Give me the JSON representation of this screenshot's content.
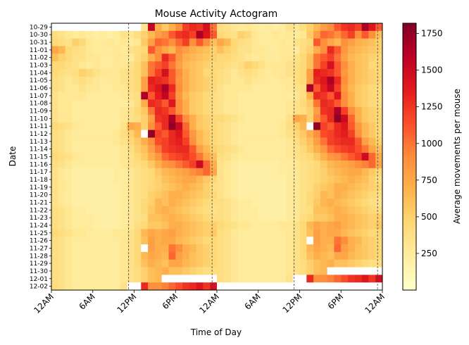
{
  "chart_data": {
    "type": "heatmap",
    "title": "Mouse Activity Actogram",
    "xlabel": "Time of Day",
    "ylabel": "Date",
    "colorbar_label": "Average movements per mouse",
    "colormap": "YlOrRd",
    "vmin": 0,
    "vmax": 1820,
    "colorbar_ticks": [
      250,
      500,
      750,
      1000,
      1250,
      1500,
      1750
    ],
    "colorbar_tick_labels": [
      "250",
      "500",
      "750",
      "1000",
      "1250",
      "1500",
      "1750"
    ],
    "x_range_hours": [
      0,
      48
    ],
    "x_tick_hours": [
      0,
      6,
      12,
      18,
      24,
      30,
      36,
      42,
      48
    ],
    "x_tick_labels": [
      "12AM",
      "6AM",
      "12PM",
      "6PM",
      "12AM",
      "6AM",
      "12PM",
      "6PM",
      "12AM"
    ],
    "bins_per_day": 24,
    "y_categories": [
      "10-29",
      "10-30",
      "10-31",
      "11-01",
      "11-02",
      "11-03",
      "11-04",
      "11-05",
      "11-06",
      "11-07",
      "11-08",
      "11-09",
      "11-10",
      "11-11",
      "11-12",
      "11-13",
      "11-14",
      "11-15",
      "11-16",
      "11-17",
      "11-18",
      "11-19",
      "11-20",
      "11-21",
      "11-22",
      "11-23",
      "11-24",
      "11-25",
      "11-26",
      "11-27",
      "11-28",
      "11-29",
      "11-30",
      "12-01",
      "12-02"
    ],
    "light_transition_hours": [
      11.2,
      23.3,
      35.2,
      47.3
    ],
    "activity_by_day": [
      [
        null,
        null,
        null,
        null,
        null,
        null,
        null,
        null,
        null,
        null,
        null,
        null,
        null,
        320,
        1550,
        700,
        550,
        700,
        900,
        1200,
        1300,
        1250,
        1450,
        1000
      ],
      [
        400,
        350,
        300,
        250,
        300,
        250,
        200,
        250,
        200,
        250,
        350,
        300,
        400,
        500,
        650,
        800,
        900,
        1100,
        1250,
        1300,
        1200,
        1650,
        1400,
        1100
      ],
      [
        450,
        400,
        350,
        500,
        450,
        300,
        250,
        250,
        300,
        250,
        300,
        250,
        300,
        550,
        800,
        1050,
        1000,
        900,
        1050,
        1200,
        900,
        1100,
        900,
        600
      ],
      [
        750,
        650,
        450,
        400,
        350,
        300,
        250,
        250,
        250,
        300,
        250,
        350,
        400,
        450,
        1100,
        900,
        750,
        650,
        900,
        800,
        700,
        650,
        600,
        500
      ],
      [
        600,
        500,
        450,
        350,
        350,
        300,
        300,
        250,
        250,
        300,
        300,
        250,
        400,
        500,
        700,
        900,
        1300,
        1100,
        850,
        700,
        650,
        600,
        550,
        500
      ],
      [
        450,
        450,
        400,
        350,
        300,
        250,
        300,
        250,
        250,
        300,
        300,
        350,
        450,
        600,
        1000,
        1100,
        1200,
        1000,
        800,
        650,
        600,
        550,
        500,
        450
      ],
      [
        450,
        400,
        350,
        400,
        500,
        450,
        350,
        300,
        300,
        300,
        350,
        400,
        450,
        600,
        1000,
        1200,
        1450,
        1100,
        900,
        700,
        600,
        550,
        450,
        450
      ],
      [
        400,
        350,
        300,
        350,
        400,
        350,
        300,
        250,
        300,
        300,
        350,
        400,
        450,
        800,
        1350,
        1300,
        1250,
        1100,
        850,
        700,
        600,
        550,
        500,
        450
      ],
      [
        400,
        350,
        300,
        300,
        350,
        300,
        300,
        250,
        250,
        300,
        300,
        400,
        450,
        800,
        1300,
        1400,
        1650,
        1300,
        900,
        700,
        600,
        550,
        500,
        450
      ],
      [
        350,
        300,
        300,
        300,
        300,
        250,
        250,
        250,
        250,
        250,
        300,
        350,
        400,
        1650,
        1100,
        1350,
        1550,
        1200,
        850,
        650,
        550,
        500,
        450,
        400
      ],
      [
        350,
        300,
        300,
        250,
        250,
        250,
        250,
        250,
        250,
        250,
        250,
        300,
        400,
        700,
        1300,
        1250,
        1100,
        1400,
        900,
        700,
        550,
        500,
        450,
        400
      ],
      [
        350,
        300,
        300,
        250,
        250,
        250,
        250,
        250,
        250,
        250,
        300,
        350,
        450,
        550,
        1000,
        1300,
        1250,
        1100,
        900,
        700,
        550,
        500,
        450,
        400
      ],
      [
        350,
        300,
        300,
        250,
        250,
        250,
        250,
        250,
        250,
        250,
        300,
        350,
        400,
        500,
        800,
        1250,
        1300,
        1650,
        1200,
        900,
        700,
        550,
        500,
        450
      ],
      [
        450,
        400,
        350,
        300,
        250,
        250,
        250,
        250,
        250,
        250,
        350,
        750,
        700,
        500,
        900,
        1100,
        1300,
        1750,
        1500,
        1050,
        700,
        550,
        500,
        450
      ],
      [
        400,
        350,
        300,
        250,
        250,
        250,
        250,
        250,
        250,
        300,
        400,
        500,
        650,
        null,
        1750,
        1200,
        1100,
        1300,
        1400,
        1100,
        850,
        650,
        550,
        450
      ],
      [
        400,
        350,
        300,
        250,
        250,
        250,
        250,
        250,
        250,
        300,
        350,
        450,
        550,
        700,
        900,
        1150,
        1200,
        1300,
        1350,
        1200,
        900,
        650,
        550,
        450
      ],
      [
        400,
        350,
        300,
        250,
        250,
        250,
        250,
        250,
        250,
        250,
        300,
        400,
        500,
        600,
        800,
        1000,
        1200,
        1250,
        1300,
        1300,
        1100,
        800,
        650,
        500
      ],
      [
        450,
        400,
        350,
        300,
        250,
        250,
        250,
        250,
        250,
        250,
        300,
        350,
        450,
        550,
        700,
        850,
        1050,
        1150,
        1200,
        1250,
        1150,
        1000,
        750,
        600
      ],
      [
        400,
        350,
        300,
        250,
        250,
        250,
        250,
        250,
        250,
        250,
        300,
        350,
        400,
        450,
        550,
        700,
        850,
        900,
        1000,
        1100,
        1200,
        1500,
        1050,
        700
      ],
      [
        350,
        300,
        250,
        200,
        200,
        200,
        200,
        200,
        200,
        250,
        250,
        300,
        350,
        400,
        450,
        550,
        650,
        700,
        750,
        800,
        900,
        950,
        1050,
        750
      ],
      [
        350,
        300,
        250,
        200,
        200,
        200,
        200,
        200,
        200,
        250,
        250,
        300,
        350,
        400,
        450,
        500,
        600,
        650,
        700,
        750,
        750,
        650,
        550,
        450
      ],
      [
        350,
        300,
        250,
        200,
        200,
        200,
        200,
        200,
        200,
        200,
        250,
        300,
        350,
        400,
        450,
        500,
        550,
        600,
        650,
        700,
        650,
        600,
        500,
        400
      ],
      [
        350,
        300,
        250,
        200,
        200,
        200,
        200,
        200,
        200,
        200,
        250,
        300,
        350,
        400,
        500,
        550,
        600,
        700,
        700,
        650,
        600,
        550,
        500,
        450
      ],
      [
        350,
        300,
        250,
        200,
        200,
        200,
        200,
        200,
        200,
        200,
        250,
        300,
        350,
        450,
        500,
        650,
        600,
        700,
        650,
        600,
        550,
        500,
        450,
        400
      ],
      [
        400,
        350,
        300,
        250,
        250,
        200,
        200,
        200,
        200,
        200,
        250,
        300,
        350,
        450,
        550,
        650,
        700,
        650,
        600,
        550,
        500,
        450,
        400,
        350
      ],
      [
        400,
        350,
        300,
        250,
        250,
        250,
        200,
        200,
        200,
        200,
        250,
        300,
        350,
        400,
        600,
        600,
        650,
        700,
        650,
        600,
        550,
        500,
        450,
        400
      ],
      [
        400,
        350,
        300,
        250,
        250,
        250,
        200,
        200,
        200,
        200,
        250,
        300,
        400,
        450,
        550,
        550,
        600,
        700,
        700,
        650,
        600,
        550,
        500,
        500
      ],
      [
        450,
        400,
        350,
        300,
        300,
        250,
        250,
        250,
        250,
        300,
        300,
        350,
        450,
        650,
        750,
        700,
        750,
        800,
        700,
        650,
        600,
        550,
        500,
        550
      ],
      [
        400,
        350,
        300,
        250,
        250,
        250,
        250,
        250,
        250,
        250,
        300,
        350,
        450,
        600,
        800,
        700,
        750,
        750,
        650,
        600,
        550,
        500,
        450,
        450
      ],
      [
        400,
        350,
        300,
        250,
        250,
        250,
        250,
        250,
        250,
        250,
        300,
        350,
        450,
        null,
        800,
        700,
        700,
        1000,
        900,
        700,
        650,
        550,
        500,
        450
      ],
      [
        400,
        350,
        300,
        250,
        250,
        250,
        250,
        250,
        250,
        250,
        300,
        350,
        450,
        650,
        750,
        700,
        650,
        1050,
        800,
        700,
        600,
        550,
        500,
        450
      ],
      [
        400,
        350,
        300,
        250,
        250,
        250,
        250,
        250,
        250,
        250,
        300,
        350,
        450,
        600,
        700,
        650,
        600,
        750,
        750,
        650,
        600,
        550,
        500,
        450
      ],
      [
        400,
        350,
        300,
        250,
        250,
        250,
        250,
        250,
        250,
        250,
        300,
        350,
        400,
        500,
        600,
        650,
        700,
        600,
        600,
        550,
        500,
        450,
        400,
        400
      ],
      [
        400,
        350,
        300,
        250,
        250,
        250,
        250,
        250,
        250,
        250,
        300,
        350,
        400,
        500,
        600,
        650,
        null,
        null,
        null,
        null,
        null,
        null,
        null,
        null
      ],
      [
        400,
        350,
        300,
        250,
        250,
        250,
        250,
        250,
        250,
        250,
        350,
        null,
        null,
        1300,
        900,
        900,
        950,
        1050,
        1150,
        1250,
        1300,
        1400,
        1250,
        1450
      ]
    ]
  }
}
